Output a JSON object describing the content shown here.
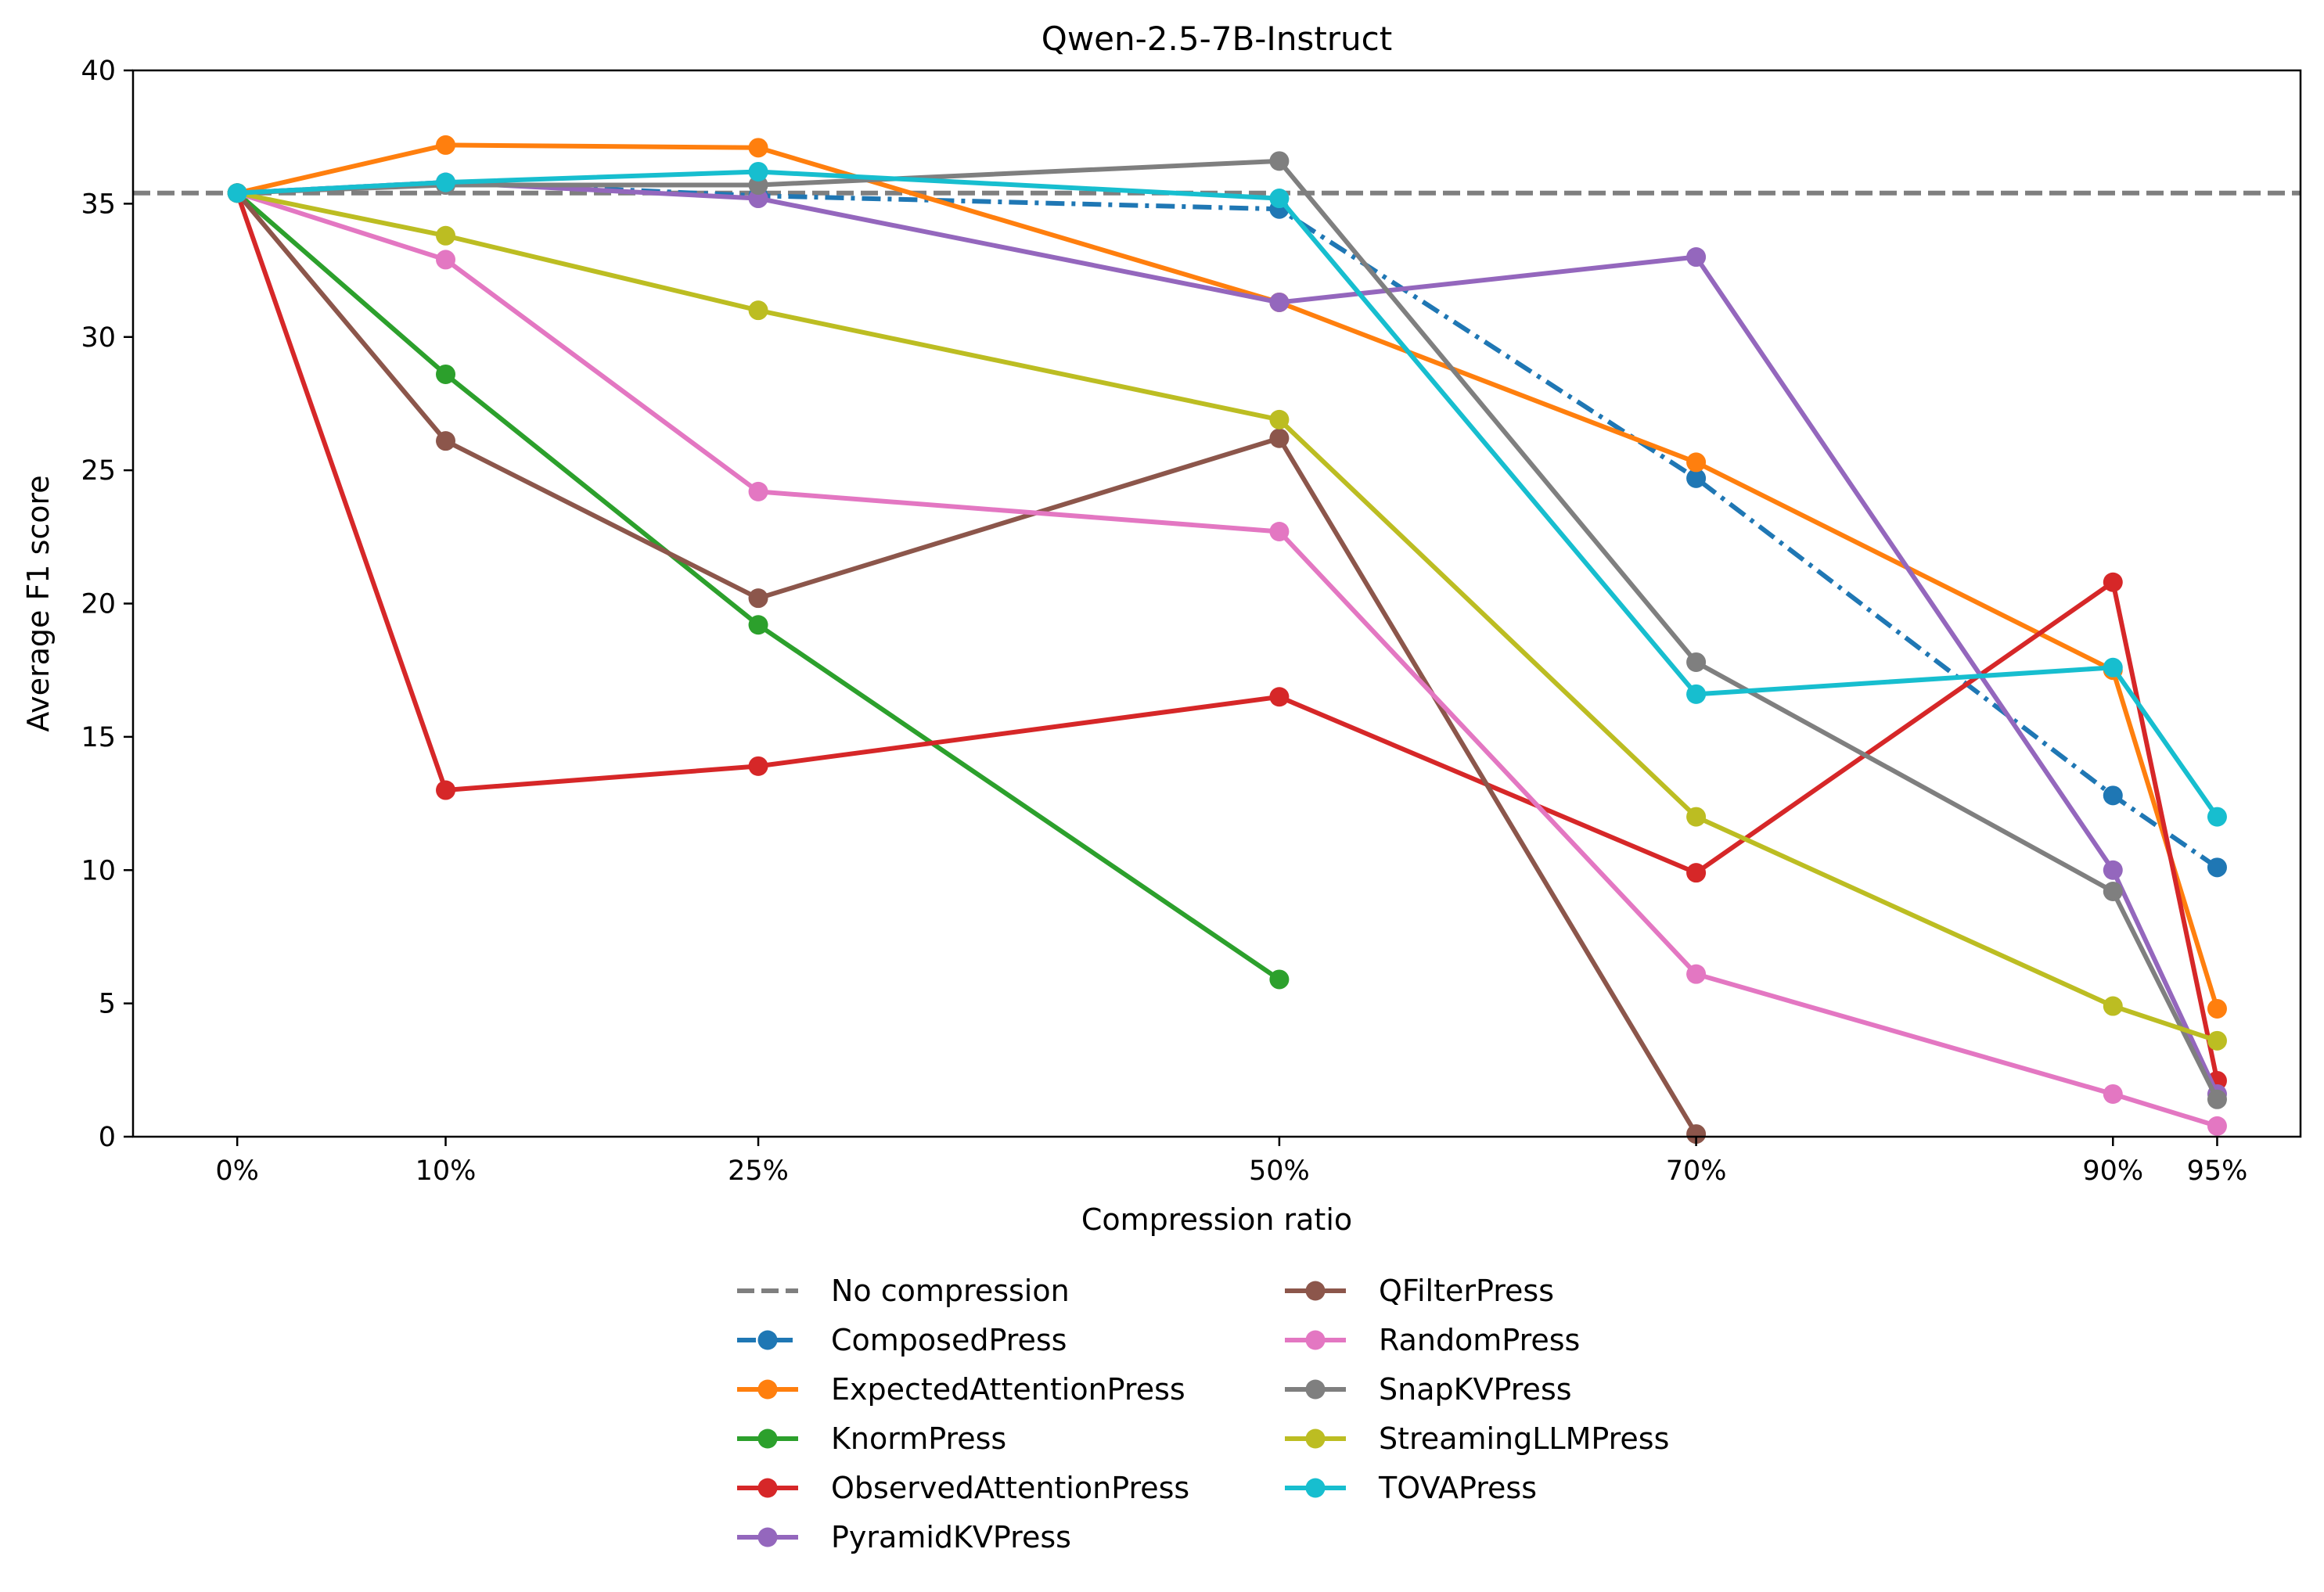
{
  "chart_data": {
    "type": "line",
    "title": "Qwen-2.5-7B-Instruct",
    "xlabel": "Compression ratio",
    "ylabel": "Average F1 score",
    "x": [
      0,
      10,
      25,
      50,
      70,
      90,
      95
    ],
    "x_tick_labels": [
      "0%",
      "10%",
      "25%",
      "50%",
      "70%",
      "90%",
      "95%"
    ],
    "xlim": [
      -5,
      99
    ],
    "ylim": [
      0,
      40
    ],
    "y_ticks": [
      0,
      5,
      10,
      15,
      20,
      25,
      30,
      35,
      40
    ],
    "grid": false,
    "legend_position": "bottom-center",
    "baseline": {
      "name": "No compression",
      "value": 35.4,
      "color": "#7f7f7f",
      "style": "dashed"
    },
    "series": [
      {
        "name": "ComposedPress",
        "color": "#1f77b4",
        "style": "dashdot",
        "values": [
          35.4,
          35.8,
          35.3,
          34.8,
          24.7,
          12.8,
          10.1
        ]
      },
      {
        "name": "ExpectedAttentionPress",
        "color": "#ff7f0e",
        "style": "solid",
        "values": [
          35.4,
          37.2,
          37.1,
          31.3,
          25.3,
          17.5,
          4.8
        ]
      },
      {
        "name": "KnormPress",
        "color": "#2ca02c",
        "style": "solid",
        "values": [
          35.4,
          28.6,
          19.2,
          5.9,
          null,
          null,
          null
        ]
      },
      {
        "name": "ObservedAttentionPress",
        "color": "#d62728",
        "style": "solid",
        "values": [
          35.4,
          13.0,
          13.9,
          16.5,
          9.9,
          20.8,
          2.1
        ]
      },
      {
        "name": "PyramidKVPress",
        "color": "#9467bd",
        "style": "solid",
        "values": [
          35.4,
          35.8,
          35.2,
          31.3,
          33.0,
          10.0,
          1.6
        ]
      },
      {
        "name": "QFilterPress",
        "color": "#8c564b",
        "style": "solid",
        "values": [
          35.4,
          26.1,
          20.2,
          26.2,
          0.1,
          null,
          null
        ]
      },
      {
        "name": "RandomPress",
        "color": "#e377c2",
        "style": "solid",
        "values": [
          35.4,
          32.9,
          24.2,
          22.7,
          6.1,
          1.6,
          0.4
        ]
      },
      {
        "name": "SnapKVPress",
        "color": "#7f7f7f",
        "style": "solid",
        "values": [
          35.4,
          35.7,
          35.7,
          36.6,
          17.8,
          9.2,
          1.4
        ]
      },
      {
        "name": "StreamingLLMPress",
        "color": "#bcbd22",
        "style": "solid",
        "values": [
          35.4,
          33.8,
          31.0,
          26.9,
          12.0,
          4.9,
          3.6
        ]
      },
      {
        "name": "TOVAPress",
        "color": "#17becf",
        "style": "solid",
        "values": [
          35.4,
          35.8,
          36.2,
          35.2,
          16.6,
          17.6,
          12.0
        ]
      }
    ]
  }
}
